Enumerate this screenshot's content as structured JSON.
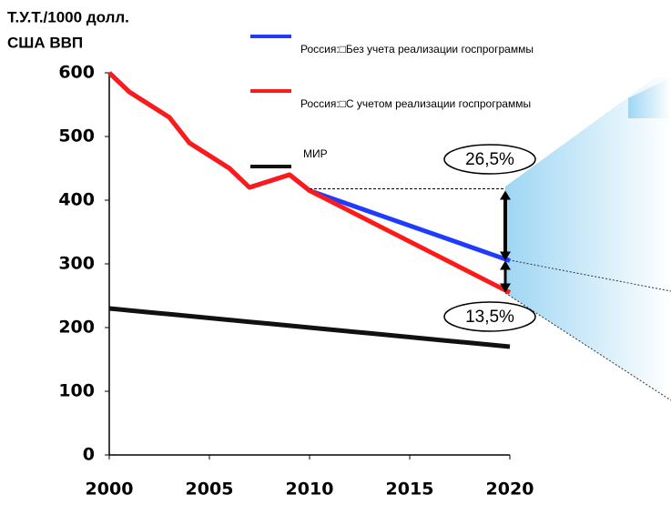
{
  "chart_data": {
    "type": "line",
    "title": [
      "Т.У.Т./1000 долл.",
      "США ВВП"
    ],
    "x": [
      2000,
      2001,
      2002,
      2003,
      2004,
      2005,
      2006,
      2007,
      2008,
      2009,
      2010,
      2011,
      2012,
      2013,
      2014,
      2015,
      2016,
      2017,
      2018,
      2019,
      2020
    ],
    "series": [
      {
        "name": "Россия:□Без учета реализации госпрограммы",
        "color": "#1f3bff",
        "values": [
          600,
          570,
          550,
          530,
          490,
          470,
          450,
          420,
          430,
          440,
          415,
          404,
          393,
          382,
          371,
          360,
          349,
          338,
          327,
          316,
          305
        ]
      },
      {
        "name": "Россия:□С учетом реализации госпрограммы",
        "color": "#ff1a1a",
        "values": [
          600,
          570,
          550,
          530,
          490,
          470,
          450,
          420,
          430,
          440,
          415,
          399,
          383,
          367,
          351,
          335,
          319,
          303,
          287,
          271,
          255
        ]
      },
      {
        "name": "МИР",
        "color": "#111111",
        "values": [
          230,
          227,
          224,
          221,
          218,
          215,
          212,
          209,
          206,
          203,
          200,
          197,
          194,
          191,
          188,
          185,
          182,
          179,
          176,
          173,
          170
        ]
      }
    ],
    "annotations": [
      "26,5%",
      "13,5%"
    ],
    "xlim": [
      2000,
      2020
    ],
    "xticks": [
      2000,
      2005,
      2010,
      2015,
      2020
    ],
    "ylim": [
      0,
      600
    ],
    "yticks": [
      0,
      100,
      200,
      300,
      400,
      500,
      600
    ]
  }
}
